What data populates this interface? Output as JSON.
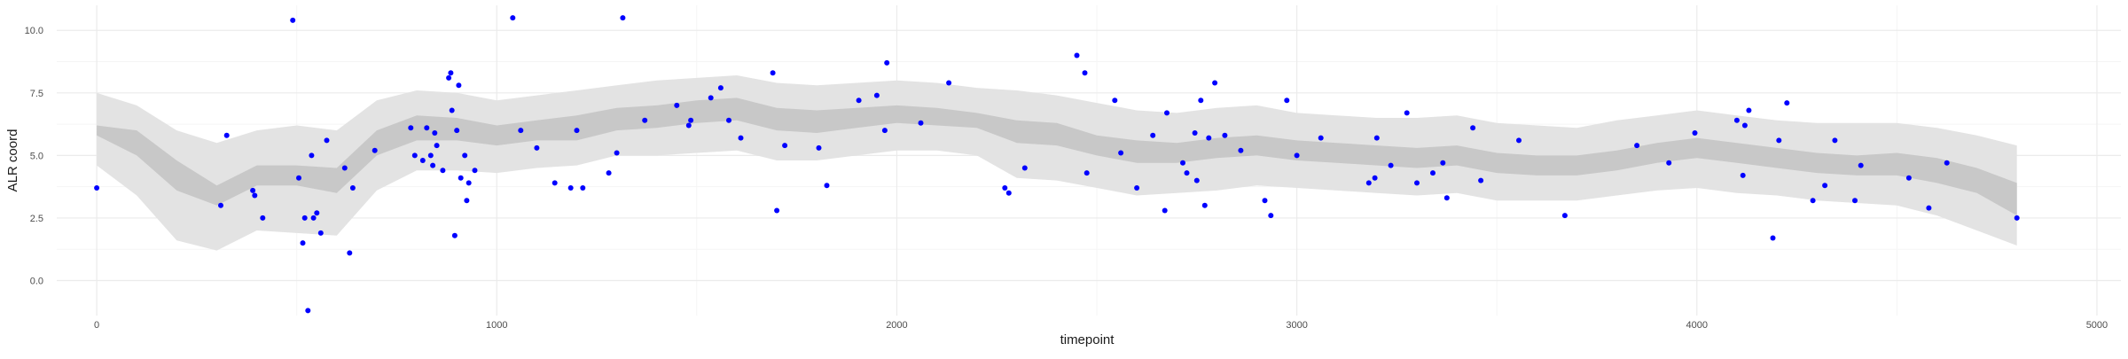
{
  "chart_data": {
    "type": "scatter",
    "title": "",
    "xlabel": "timepoint",
    "ylabel": "ALR coord",
    "xlim": [
      -100,
      5060
    ],
    "ylim": [
      -1.4,
      11.0
    ],
    "x_ticks": [
      0,
      1000,
      2000,
      3000,
      4000,
      5000
    ],
    "y_ticks": [
      0.0,
      2.5,
      5.0,
      7.5,
      10.0
    ],
    "x_tick_labels": [
      "0",
      "1000",
      "2000",
      "3000",
      "4000",
      "5000"
    ],
    "y_tick_labels": [
      "0.0",
      "2.5",
      "5.0",
      "7.5",
      "10.0"
    ],
    "grid": true,
    "legend": "none",
    "colors": {
      "points": "#0000ff",
      "inner_band": "#c8c8c8",
      "outer_band": "#e3e3e3",
      "grid_major": "#ebebeb",
      "grid_minor": "#f5f5f5"
    },
    "band_95": {
      "x": [
        0,
        100,
        200,
        300,
        400,
        500,
        600,
        700,
        800,
        900,
        1000,
        1100,
        1200,
        1300,
        1400,
        1500,
        1600,
        1700,
        1800,
        1900,
        2000,
        2100,
        2200,
        2300,
        2400,
        2500,
        2600,
        2700,
        2800,
        2900,
        3000,
        3100,
        3200,
        3300,
        3400,
        3500,
        3600,
        3700,
        3800,
        3900,
        4000,
        4100,
        4200,
        4300,
        4400,
        4500,
        4600,
        4700,
        4800
      ],
      "lower": [
        4.6,
        3.4,
        1.6,
        1.2,
        2.0,
        1.9,
        1.8,
        3.6,
        4.4,
        4.4,
        4.3,
        4.5,
        4.6,
        5.0,
        5.0,
        5.1,
        5.2,
        4.8,
        4.8,
        5.0,
        5.2,
        5.2,
        5.0,
        4.1,
        4.0,
        3.7,
        3.4,
        3.5,
        3.6,
        3.8,
        3.7,
        3.6,
        3.5,
        3.4,
        3.5,
        3.2,
        3.2,
        3.2,
        3.4,
        3.6,
        3.7,
        3.5,
        3.4,
        3.2,
        3.1,
        3.0,
        2.6,
        2.0,
        1.4
      ],
      "upper": [
        7.5,
        7.0,
        6.0,
        5.5,
        6.0,
        6.2,
        6.0,
        7.2,
        7.6,
        7.5,
        7.2,
        7.4,
        7.6,
        7.8,
        8.0,
        8.1,
        8.2,
        7.9,
        7.8,
        7.9,
        8.0,
        7.9,
        7.7,
        7.6,
        7.4,
        7.1,
        6.8,
        6.7,
        6.9,
        7.0,
        6.7,
        6.6,
        6.5,
        6.5,
        6.6,
        6.3,
        6.2,
        6.1,
        6.4,
        6.6,
        6.8,
        6.6,
        6.4,
        6.3,
        6.3,
        6.3,
        6.1,
        5.8,
        5.4
      ]
    },
    "band_50": {
      "x": [
        0,
        100,
        200,
        300,
        400,
        500,
        600,
        700,
        800,
        900,
        1000,
        1100,
        1200,
        1300,
        1400,
        1500,
        1600,
        1700,
        1800,
        1900,
        2000,
        2100,
        2200,
        2300,
        2400,
        2500,
        2600,
        2700,
        2800,
        2900,
        3000,
        3100,
        3200,
        3300,
        3400,
        3500,
        3600,
        3700,
        3800,
        3900,
        4000,
        4100,
        4200,
        4300,
        4400,
        4500,
        4600,
        4700,
        4800
      ],
      "lower": [
        5.8,
        5.0,
        3.6,
        3.0,
        3.8,
        3.8,
        3.5,
        5.0,
        5.6,
        5.6,
        5.4,
        5.6,
        5.6,
        6.0,
        6.1,
        6.3,
        6.4,
        6.0,
        5.9,
        6.1,
        6.3,
        6.2,
        6.1,
        5.5,
        5.4,
        5.0,
        4.7,
        4.7,
        4.9,
        5.0,
        4.8,
        4.7,
        4.6,
        4.5,
        4.6,
        4.3,
        4.2,
        4.2,
        4.4,
        4.7,
        4.9,
        4.7,
        4.5,
        4.3,
        4.2,
        4.2,
        3.9,
        3.5,
        2.6
      ],
      "upper": [
        6.2,
        6.0,
        4.8,
        3.8,
        4.6,
        4.6,
        4.5,
        6.0,
        6.6,
        6.5,
        6.2,
        6.4,
        6.6,
        6.9,
        7.0,
        7.2,
        7.3,
        6.9,
        6.8,
        6.9,
        7.0,
        6.9,
        6.7,
        6.4,
        6.3,
        5.8,
        5.6,
        5.5,
        5.7,
        5.8,
        5.6,
        5.5,
        5.4,
        5.3,
        5.4,
        5.1,
        5.0,
        5.0,
        5.2,
        5.5,
        5.7,
        5.5,
        5.3,
        5.1,
        5.0,
        5.1,
        4.9,
        4.5,
        3.9
      ]
    },
    "points": [
      {
        "x": 0,
        "y": 3.7
      },
      {
        "x": 310,
        "y": 3.0
      },
      {
        "x": 325,
        "y": 5.8
      },
      {
        "x": 390,
        "y": 3.6
      },
      {
        "x": 395,
        "y": 3.4
      },
      {
        "x": 415,
        "y": 2.5
      },
      {
        "x": 490,
        "y": 10.4
      },
      {
        "x": 505,
        "y": 4.1
      },
      {
        "x": 515,
        "y": 1.5
      },
      {
        "x": 520,
        "y": 2.5
      },
      {
        "x": 528,
        "y": -1.2
      },
      {
        "x": 537,
        "y": 5.0
      },
      {
        "x": 542,
        "y": 2.5
      },
      {
        "x": 550,
        "y": 2.7
      },
      {
        "x": 560,
        "y": 1.9
      },
      {
        "x": 575,
        "y": 5.6
      },
      {
        "x": 620,
        "y": 4.5
      },
      {
        "x": 632,
        "y": 1.1
      },
      {
        "x": 640,
        "y": 3.7
      },
      {
        "x": 695,
        "y": 5.2
      },
      {
        "x": 785,
        "y": 6.1
      },
      {
        "x": 795,
        "y": 5.0
      },
      {
        "x": 815,
        "y": 4.8
      },
      {
        "x": 825,
        "y": 6.1
      },
      {
        "x": 835,
        "y": 5.0
      },
      {
        "x": 840,
        "y": 4.6
      },
      {
        "x": 845,
        "y": 5.9
      },
      {
        "x": 850,
        "y": 5.4
      },
      {
        "x": 865,
        "y": 4.4
      },
      {
        "x": 880,
        "y": 8.1
      },
      {
        "x": 885,
        "y": 8.3
      },
      {
        "x": 888,
        "y": 6.8
      },
      {
        "x": 895,
        "y": 1.8
      },
      {
        "x": 900,
        "y": 6.0
      },
      {
        "x": 905,
        "y": 7.8
      },
      {
        "x": 910,
        "y": 4.1
      },
      {
        "x": 920,
        "y": 5.0
      },
      {
        "x": 925,
        "y": 3.2
      },
      {
        "x": 930,
        "y": 3.9
      },
      {
        "x": 945,
        "y": 4.4
      },
      {
        "x": 1040,
        "y": 10.5
      },
      {
        "x": 1060,
        "y": 6.0
      },
      {
        "x": 1100,
        "y": 5.3
      },
      {
        "x": 1145,
        "y": 3.9
      },
      {
        "x": 1185,
        "y": 3.7
      },
      {
        "x": 1200,
        "y": 6.0
      },
      {
        "x": 1215,
        "y": 3.7
      },
      {
        "x": 1280,
        "y": 4.3
      },
      {
        "x": 1300,
        "y": 5.1
      },
      {
        "x": 1315,
        "y": 10.5
      },
      {
        "x": 1370,
        "y": 6.4
      },
      {
        "x": 1450,
        "y": 7.0
      },
      {
        "x": 1480,
        "y": 6.2
      },
      {
        "x": 1485,
        "y": 6.4
      },
      {
        "x": 1535,
        "y": 7.3
      },
      {
        "x": 1560,
        "y": 7.7
      },
      {
        "x": 1580,
        "y": 6.4
      },
      {
        "x": 1610,
        "y": 5.7
      },
      {
        "x": 1690,
        "y": 8.3
      },
      {
        "x": 1700,
        "y": 2.8
      },
      {
        "x": 1720,
        "y": 5.4
      },
      {
        "x": 1805,
        "y": 5.3
      },
      {
        "x": 1825,
        "y": 3.8
      },
      {
        "x": 1905,
        "y": 7.2
      },
      {
        "x": 1950,
        "y": 7.4
      },
      {
        "x": 1970,
        "y": 6.0
      },
      {
        "x": 1975,
        "y": 8.7
      },
      {
        "x": 2060,
        "y": 6.3
      },
      {
        "x": 2130,
        "y": 7.9
      },
      {
        "x": 2270,
        "y": 3.7
      },
      {
        "x": 2280,
        "y": 3.5
      },
      {
        "x": 2320,
        "y": 4.5
      },
      {
        "x": 2450,
        "y": 9.0
      },
      {
        "x": 2470,
        "y": 8.3
      },
      {
        "x": 2475,
        "y": 4.3
      },
      {
        "x": 2545,
        "y": 7.2
      },
      {
        "x": 2560,
        "y": 5.1
      },
      {
        "x": 2600,
        "y": 3.7
      },
      {
        "x": 2640,
        "y": 5.8
      },
      {
        "x": 2670,
        "y": 2.8
      },
      {
        "x": 2675,
        "y": 6.7
      },
      {
        "x": 2715,
        "y": 4.7
      },
      {
        "x": 2725,
        "y": 4.3
      },
      {
        "x": 2745,
        "y": 5.9
      },
      {
        "x": 2750,
        "y": 4.0
      },
      {
        "x": 2760,
        "y": 7.2
      },
      {
        "x": 2770,
        "y": 3.0
      },
      {
        "x": 2780,
        "y": 5.7
      },
      {
        "x": 2795,
        "y": 7.9
      },
      {
        "x": 2820,
        "y": 5.8
      },
      {
        "x": 2860,
        "y": 5.2
      },
      {
        "x": 2920,
        "y": 3.2
      },
      {
        "x": 2935,
        "y": 2.6
      },
      {
        "x": 2975,
        "y": 7.2
      },
      {
        "x": 3000,
        "y": 5.0
      },
      {
        "x": 3060,
        "y": 5.7
      },
      {
        "x": 3180,
        "y": 3.9
      },
      {
        "x": 3195,
        "y": 4.1
      },
      {
        "x": 3200,
        "y": 5.7
      },
      {
        "x": 3235,
        "y": 4.6
      },
      {
        "x": 3275,
        "y": 6.7
      },
      {
        "x": 3300,
        "y": 3.9
      },
      {
        "x": 3340,
        "y": 4.3
      },
      {
        "x": 3365,
        "y": 4.7
      },
      {
        "x": 3375,
        "y": 3.3
      },
      {
        "x": 3440,
        "y": 6.1
      },
      {
        "x": 3460,
        "y": 4.0
      },
      {
        "x": 3555,
        "y": 5.6
      },
      {
        "x": 3670,
        "y": 2.6
      },
      {
        "x": 3850,
        "y": 5.4
      },
      {
        "x": 3930,
        "y": 4.7
      },
      {
        "x": 3995,
        "y": 5.9
      },
      {
        "x": 4100,
        "y": 6.4
      },
      {
        "x": 4115,
        "y": 4.2
      },
      {
        "x": 4120,
        "y": 6.2
      },
      {
        "x": 4130,
        "y": 6.8
      },
      {
        "x": 4190,
        "y": 1.7
      },
      {
        "x": 4205,
        "y": 5.6
      },
      {
        "x": 4225,
        "y": 7.1
      },
      {
        "x": 4290,
        "y": 3.2
      },
      {
        "x": 4320,
        "y": 3.8
      },
      {
        "x": 4345,
        "y": 5.6
      },
      {
        "x": 4395,
        "y": 3.2
      },
      {
        "x": 4410,
        "y": 4.6
      },
      {
        "x": 4530,
        "y": 4.1
      },
      {
        "x": 4580,
        "y": 2.9
      },
      {
        "x": 4625,
        "y": 4.7
      },
      {
        "x": 4800,
        "y": 2.5
      }
    ]
  }
}
